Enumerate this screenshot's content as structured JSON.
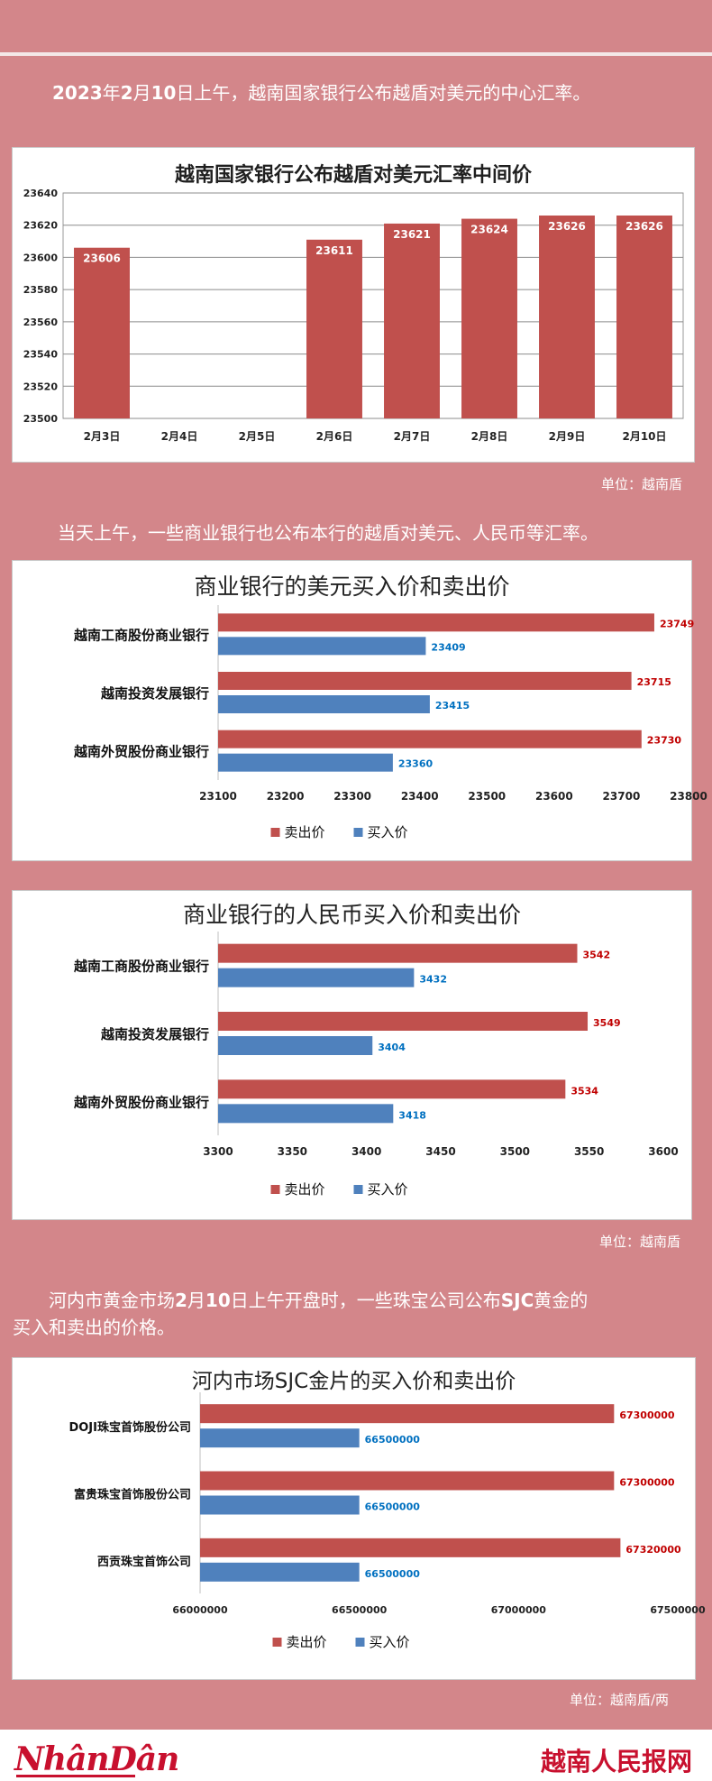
{
  "intro": {
    "line1_bold1": "2023",
    "line1_t1": "年",
    "line1_bold2": "2",
    "line1_t2": "月",
    "line1_bold3": "10",
    "line1_t3": "日上午，越南国家银行公布越盾对美元的中心汇率。"
  },
  "para2": "当天上午，一些商业银行也公布本行的越盾对美元、人民币等汇率。",
  "para3": {
    "t1": "河内市黄金市场",
    "b1": "2",
    "t2": "月",
    "b2": "10",
    "t3": "日上午开盘时，一些珠宝公司公布",
    "b3": "SJC",
    "t4": "黄金的",
    "line2": "买入和卖出的价格。"
  },
  "units": {
    "u1": "单位：越南盾",
    "u2": "单位：越南盾",
    "u3": "单位：越南盾/两"
  },
  "footer": {
    "logo": "NhânDân",
    "brand": "越南人民报网"
  },
  "colors": {
    "sell": "#c0504d",
    "buy": "#4f81bd",
    "sell_label": "#c00000",
    "buy_label": "#0070c0",
    "background": "#d3868a"
  },
  "chart_data": [
    {
      "type": "bar",
      "title": "越南国家银行公布越盾对美元汇率中间价",
      "categories": [
        "2月3日",
        "2月4日",
        "2月5日",
        "2月6日",
        "2月7日",
        "2月8日",
        "2月9日",
        "2月10日"
      ],
      "values": [
        23606,
        null,
        null,
        23611,
        23621,
        23624,
        23626,
        23626
      ],
      "ylim": [
        23500,
        23640
      ],
      "yticks": [
        23500,
        23520,
        23540,
        23560,
        23580,
        23600,
        23620,
        23640
      ],
      "grid": true
    },
    {
      "type": "bar",
      "orientation": "horizontal",
      "title": "商业银行的美元买入价和卖出价",
      "categories": [
        "越南工商股份商业银行",
        "越南投资发展银行",
        "越南外贸股份商业银行"
      ],
      "series": [
        {
          "name": "卖出价",
          "values": [
            23749,
            23715,
            23730
          ]
        },
        {
          "name": "买入价",
          "values": [
            23409,
            23415,
            23360
          ]
        }
      ],
      "xlim": [
        23100,
        23800
      ],
      "xticks": [
        23100,
        23200,
        23300,
        23400,
        23500,
        23600,
        23700,
        23800
      ],
      "legend": "bottom"
    },
    {
      "type": "bar",
      "orientation": "horizontal",
      "title": "商业银行的人民币买入价和卖出价",
      "categories": [
        "越南工商股份商业银行",
        "越南投资发展银行",
        "越南外贸股份商业银行"
      ],
      "series": [
        {
          "name": "卖出价",
          "values": [
            3542,
            3549,
            3534
          ]
        },
        {
          "name": "买入价",
          "values": [
            3432,
            3404,
            3418
          ]
        }
      ],
      "xlim": [
        3300,
        3600
      ],
      "xticks": [
        3300,
        3350,
        3400,
        3450,
        3500,
        3550,
        3600
      ],
      "legend": "bottom"
    },
    {
      "type": "bar",
      "orientation": "horizontal",
      "title": "河内市场SJC金片的买入价和卖出价",
      "categories": [
        "DOJI珠宝首饰股份公司",
        "富贵珠宝首饰股份公司",
        "西贡珠宝首饰公司"
      ],
      "series": [
        {
          "name": "卖出价",
          "values": [
            67300000,
            67300000,
            67320000
          ]
        },
        {
          "name": "买入价",
          "values": [
            66500000,
            66500000,
            66500000
          ]
        }
      ],
      "xlim": [
        66000000,
        67500000
      ],
      "xticks": [
        66000000,
        66500000,
        67000000,
        67500000
      ],
      "legend": "bottom"
    }
  ]
}
